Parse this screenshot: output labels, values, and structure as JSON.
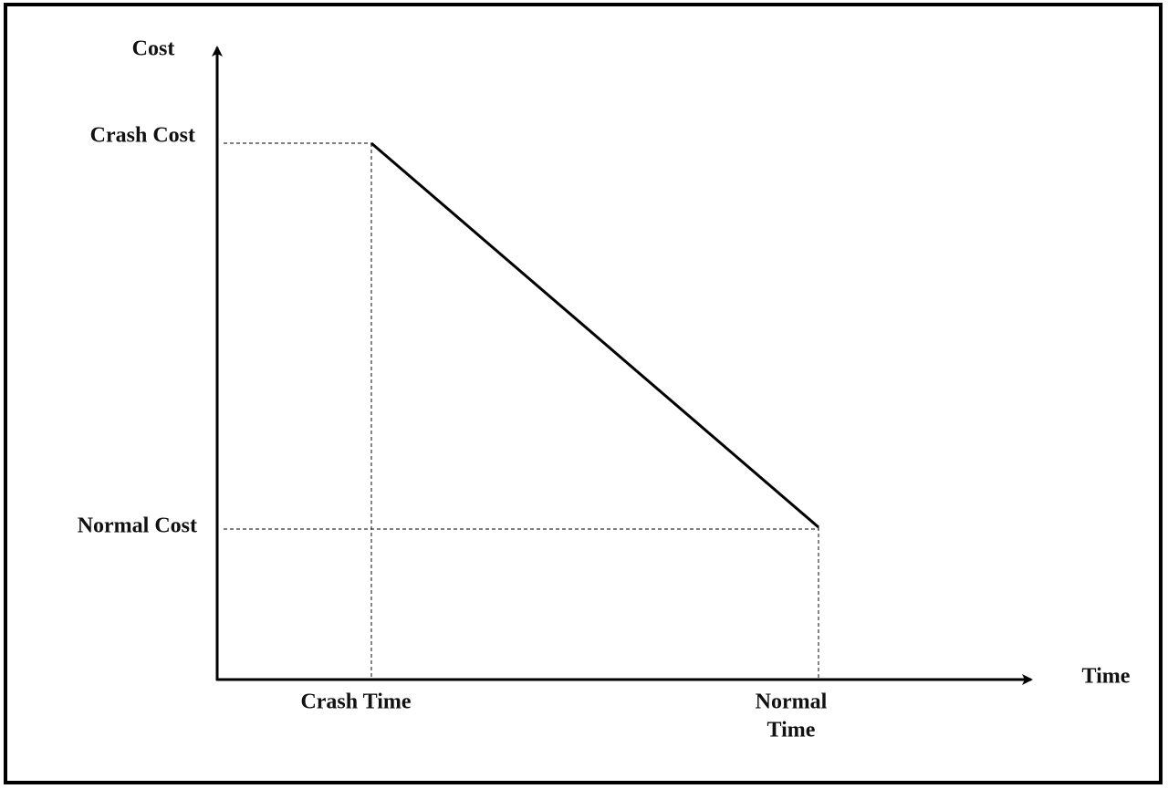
{
  "axes": {
    "y_label": "Cost",
    "x_label": "Time"
  },
  "y_points": [
    {
      "label": "Crash Cost"
    },
    {
      "label": "Normal Cost"
    }
  ],
  "x_points": [
    {
      "lines": [
        "Crash Time"
      ]
    },
    {
      "lines": [
        "Normal",
        "Time"
      ]
    }
  ]
}
